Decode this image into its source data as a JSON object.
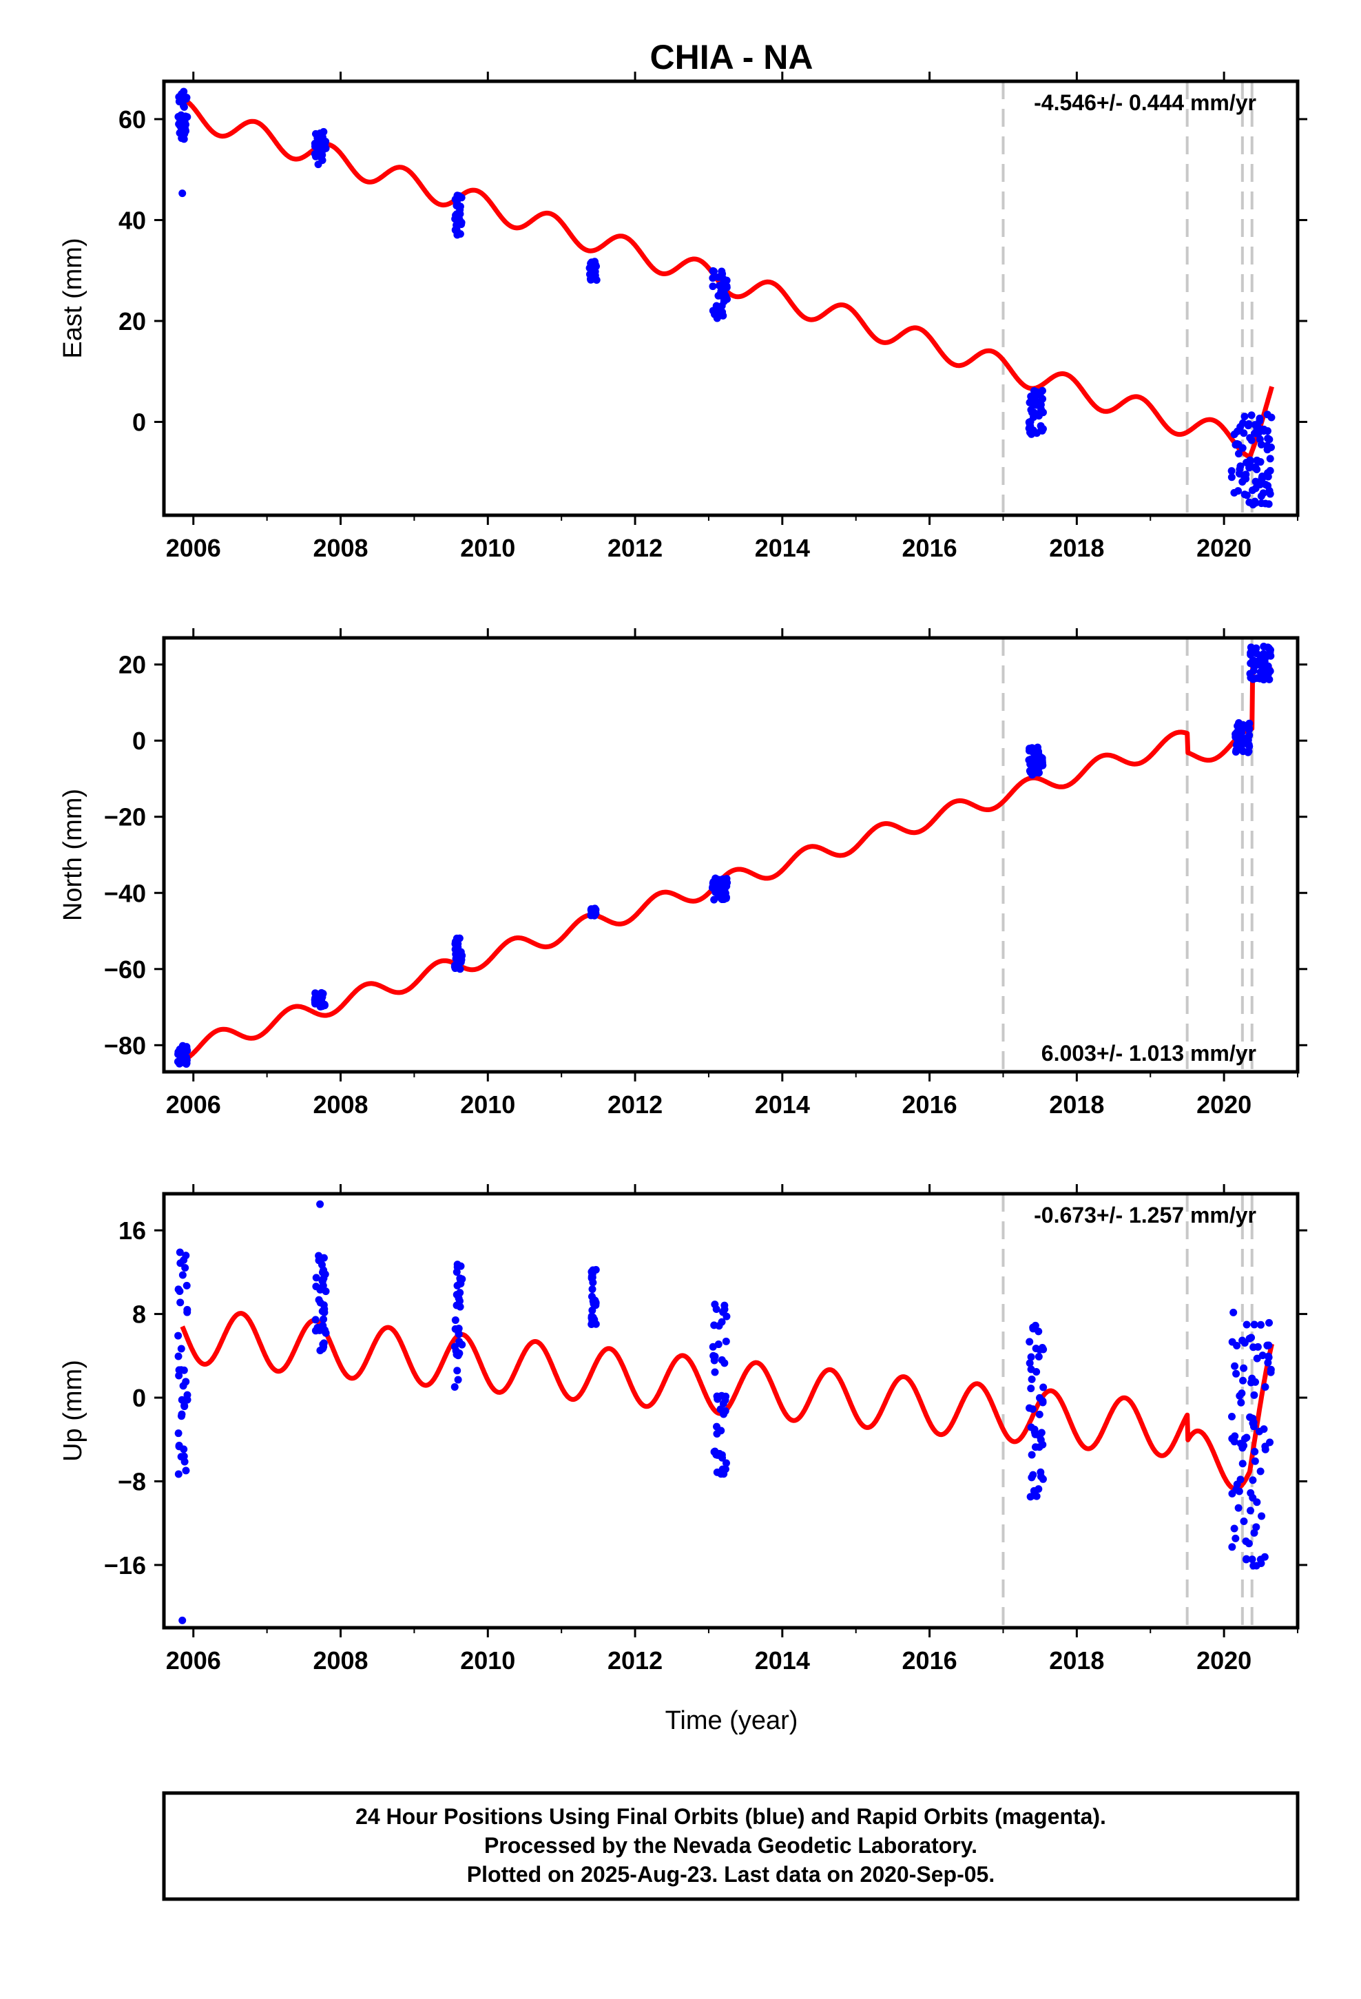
{
  "title": "CHIA - NA",
  "xlabel": "Time (year)",
  "caption": [
    "24 Hour Positions Using Final Orbits (blue) and Rapid Orbits (magenta).",
    "Processed by the Nevada Geodetic Laboratory.",
    "Plotted on 2025-Aug-23. Last data on 2020-Sep-05."
  ],
  "colors": {
    "model": "#ff0000",
    "final_orbit": "#0000ff",
    "rapid_orbit": "#ff00ff",
    "break": "#c8c8c8",
    "frame": "#000000"
  },
  "chart_data": [
    {
      "type": "scatter",
      "ylabel": "East (mm)",
      "rate_label": "-4.546+/- 0.444 mm/yr",
      "rate_position": "top-right",
      "xlim": [
        2005.6,
        2021.0
      ],
      "ylim": [
        -18.5,
        67.5
      ],
      "x_ticks": [
        2006,
        2008,
        2010,
        2012,
        2014,
        2016,
        2018,
        2020
      ],
      "y_ticks": [
        0,
        20,
        40,
        60
      ],
      "breaks": [
        2017.0,
        2019.5,
        2020.25,
        2020.38
      ],
      "model": {
        "offset": 61.5,
        "t0": 2005.85,
        "rate": -4.546,
        "amp_cos": 2.5,
        "amp_sin": 0,
        "phase_year": 2005.85,
        "steps": [
          {
            "year": 2020.25,
            "size": 0
          }
        ],
        "post_slope": {
          "from": 2020.35,
          "to": 2020.65,
          "rate": 40
        }
      },
      "clusters": [
        {
          "x": [
            2005.78,
            2005.92
          ],
          "y": [
            56,
            65.5
          ],
          "outliers": [
            [
              2005.85,
              45.3
            ]
          ]
        },
        {
          "x": [
            2007.65,
            2007.8
          ],
          "y": [
            51,
            57.5
          ]
        },
        {
          "x": [
            2009.55,
            2009.65
          ],
          "y": [
            37,
            45
          ]
        },
        {
          "x": [
            2011.38,
            2011.48
          ],
          "y": [
            28,
            31.8
          ]
        },
        {
          "x": [
            2013.05,
            2013.25
          ],
          "y": [
            20.5,
            30
          ]
        },
        {
          "x": [
            2017.35,
            2017.55
          ],
          "y": [
            -2.5,
            6.5
          ]
        },
        {
          "x": [
            2020.1,
            2020.65
          ],
          "y": [
            -16.5,
            1.5
          ]
        }
      ]
    },
    {
      "type": "scatter",
      "ylabel": "North (mm)",
      "rate_label": "6.003+/- 1.013 mm/yr",
      "rate_position": "bottom-right",
      "xlim": [
        2005.6,
        2021.0
      ],
      "ylim": [
        -87,
        27
      ],
      "x_ticks": [
        2006,
        2008,
        2010,
        2012,
        2014,
        2016,
        2018,
        2020
      ],
      "y_ticks": [
        -80,
        -60,
        -40,
        -20,
        0,
        20
      ],
      "breaks": [
        2017.0,
        2019.5,
        2020.25,
        2020.38
      ],
      "model": {
        "offset": -81.5,
        "t0": 2005.85,
        "rate": 6.003,
        "amp_cos": -2.5,
        "amp_sin": 0,
        "phase_year": 2005.85,
        "steps": [
          {
            "year": 2017.0,
            "size": 0
          },
          {
            "year": 2019.5,
            "size": -5
          },
          {
            "year": 2020.38,
            "size": 17
          }
        ]
      },
      "clusters": [
        {
          "x": [
            2005.78,
            2005.92
          ],
          "y": [
            -85,
            -80
          ]
        },
        {
          "x": [
            2007.65,
            2007.8
          ],
          "y": [
            -70,
            -66
          ]
        },
        {
          "x": [
            2009.55,
            2009.65
          ],
          "y": [
            -60,
            -51
          ]
        },
        {
          "x": [
            2011.4,
            2011.47
          ],
          "y": [
            -46,
            -44
          ]
        },
        {
          "x": [
            2013.05,
            2013.25
          ],
          "y": [
            -42,
            -36
          ]
        },
        {
          "x": [
            2017.35,
            2017.55
          ],
          "y": [
            -9,
            -1.5
          ]
        },
        {
          "x": [
            2020.15,
            2020.35
          ],
          "y": [
            -3.5,
            5
          ]
        },
        {
          "x": [
            2020.35,
            2020.65
          ],
          "y": [
            16,
            25
          ]
        }
      ]
    },
    {
      "type": "scatter",
      "ylabel": "Up (mm)",
      "rate_label": "-0.673+/- 1.257 mm/yr",
      "rate_position": "top-right",
      "xlim": [
        2005.6,
        2021.0
      ],
      "ylim": [
        -22,
        19.5
      ],
      "x_ticks": [
        2006,
        2008,
        2010,
        2012,
        2014,
        2016,
        2018,
        2020
      ],
      "y_ticks": [
        -16,
        -8,
        0,
        8,
        16
      ],
      "breaks": [
        2017.0,
        2019.5,
        2020.25,
        2020.38
      ],
      "model": {
        "offset": 6.0,
        "t0": 2005.85,
        "rate": -0.673,
        "amp_cos": 2.6,
        "amp_sin": 0,
        "phase_year": 2006.65,
        "steps": [
          {
            "year": 2019.5,
            "size": -2.5
          }
        ],
        "post_slope": {
          "from": 2020.35,
          "to": 2020.65,
          "rate": 30
        }
      },
      "clusters": [
        {
          "x": [
            2005.78,
            2005.92
          ],
          "y": [
            -8,
            14
          ],
          "outliers": [
            [
              2005.85,
              -21.3
            ]
          ]
        },
        {
          "x": [
            2007.65,
            2007.8
          ],
          "y": [
            4.5,
            14.5
          ],
          "outliers": [
            [
              2007.72,
              18.5
            ]
          ]
        },
        {
          "x": [
            2009.55,
            2009.65
          ],
          "y": [
            0.8,
            13.8
          ]
        },
        {
          "x": [
            2011.4,
            2011.47
          ],
          "y": [
            7,
            13
          ]
        },
        {
          "x": [
            2013.05,
            2013.25
          ],
          "y": [
            -7.5,
            9
          ]
        },
        {
          "x": [
            2017.35,
            2017.55
          ],
          "y": [
            -9.5,
            7.5
          ]
        },
        {
          "x": [
            2020.1,
            2020.65
          ],
          "y": [
            -16.5,
            8.5
          ]
        }
      ]
    }
  ]
}
